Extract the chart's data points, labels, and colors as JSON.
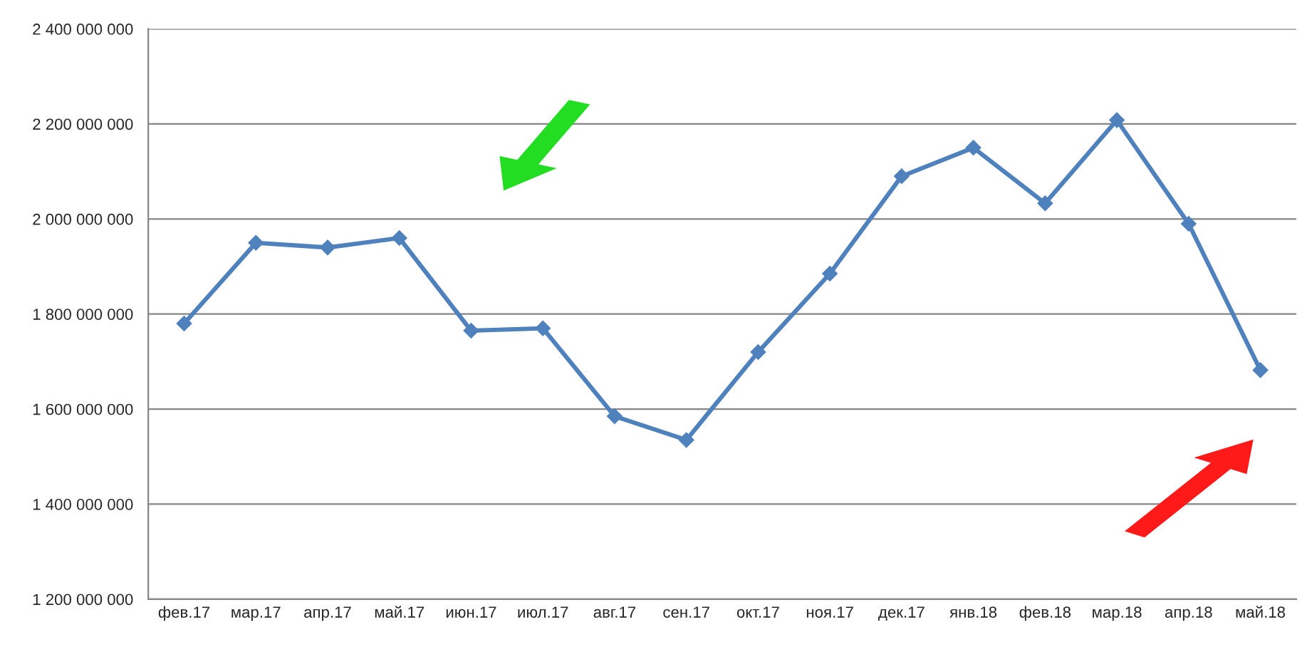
{
  "chart_data": {
    "type": "line",
    "categories": [
      "фев.17",
      "мар.17",
      "апр.17",
      "май.17",
      "июн.17",
      "июл.17",
      "авг.17",
      "сен.17",
      "окт.17",
      "ноя.17",
      "дек.17",
      "янв.18",
      "фев.18",
      "мар.18",
      "апр.18",
      "май.18"
    ],
    "series": [
      {
        "color": "#4f81bd",
        "values": [
          1780000000,
          1950000000,
          1940000000,
          1960000000,
          1765000000,
          1770000000,
          1585000000,
          1535000000,
          1720000000,
          1885000000,
          2090000000,
          2150000000,
          2033000000,
          2208000000,
          1990000000,
          1682000000
        ]
      }
    ],
    "ylim": [
      1200000000,
      2400000000
    ],
    "yticks": [
      {
        "value": 1200000000,
        "label": "1 200 000 000"
      },
      {
        "value": 1400000000,
        "label": "1 400 000 000"
      },
      {
        "value": 1600000000,
        "label": "1 600 000 000"
      },
      {
        "value": 1800000000,
        "label": "1 800 000 000"
      },
      {
        "value": 2000000000,
        "label": "2 000 000 000"
      },
      {
        "value": 2200000000,
        "label": "2 200 000 000"
      },
      {
        "value": 2400000000,
        "label": "2 400 000 000"
      }
    ],
    "grid": "y",
    "marker": "diamond",
    "line_style": "solid",
    "legend": false
  }
}
